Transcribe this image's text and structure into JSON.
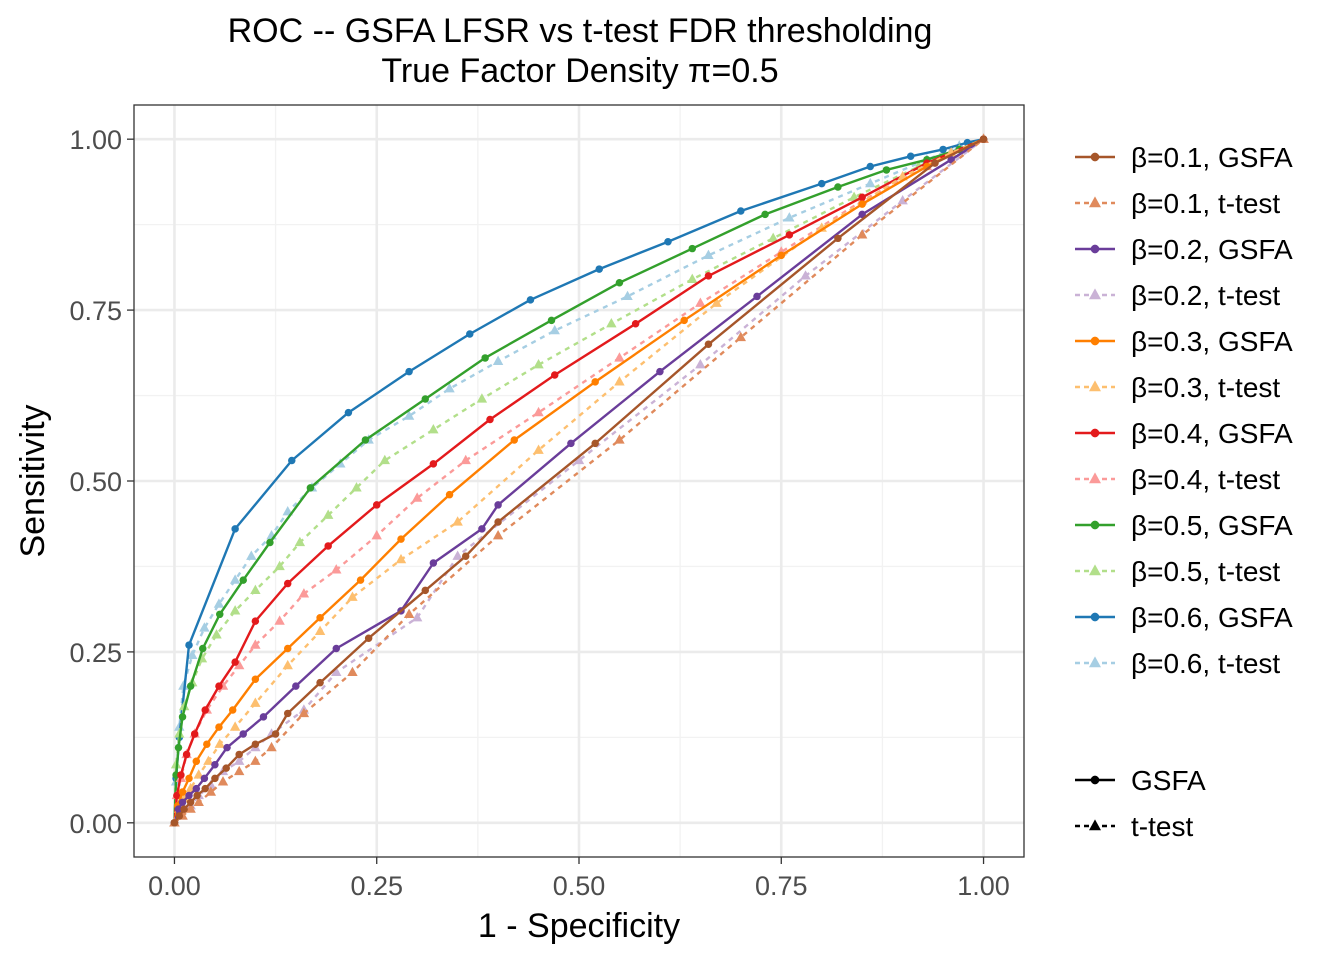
{
  "chart_data": {
    "type": "line",
    "title": "ROC -- GSFA LFSR vs t-test FDR thresholding",
    "subtitle": "True Factor Density π=0.5",
    "xlabel": "1 - Specificity",
    "ylabel": "Sensitivity",
    "xlim": [
      -0.05,
      1.05
    ],
    "ylim": [
      -0.05,
      1.05
    ],
    "xticks": [
      0,
      0.25,
      0.5,
      0.75,
      1
    ],
    "yticks": [
      0,
      0.25,
      0.5,
      0.75,
      1
    ],
    "xtick_labels": [
      "0.00",
      "0.25",
      "0.50",
      "0.75",
      "1.00"
    ],
    "ytick_labels": [
      "0.00",
      "0.25",
      "0.50",
      "0.75",
      "1.00"
    ],
    "grid": true,
    "legend_position": "right",
    "series": [
      {
        "name": "β=0.1, GSFA",
        "color": "#a6562a",
        "marker": "circle",
        "dash": "solid",
        "x": [
          0,
          0.006,
          0.012,
          0.02,
          0.028,
          0.038,
          0.05,
          0.064,
          0.08,
          0.1,
          0.125,
          0.14,
          0.18,
          0.24,
          0.31,
          0.36,
          0.4,
          0.52,
          0.66,
          0.82,
          0.94,
          1.0
        ],
        "y": [
          0,
          0.01,
          0.02,
          0.03,
          0.04,
          0.05,
          0.065,
          0.08,
          0.1,
          0.115,
          0.13,
          0.16,
          0.205,
          0.27,
          0.34,
          0.39,
          0.44,
          0.555,
          0.7,
          0.855,
          0.965,
          1.0
        ]
      },
      {
        "name": "β=0.1, t-test",
        "color": "#e08a5c",
        "marker": "triangle",
        "dash": "dashed",
        "x": [
          0,
          0.01,
          0.02,
          0.03,
          0.045,
          0.06,
          0.08,
          0.1,
          0.12,
          0.16,
          0.22,
          0.29,
          0.4,
          0.55,
          0.7,
          0.85,
          1.0
        ],
        "y": [
          0,
          0.01,
          0.02,
          0.03,
          0.045,
          0.06,
          0.075,
          0.09,
          0.11,
          0.16,
          0.22,
          0.305,
          0.42,
          0.56,
          0.71,
          0.86,
          1.0
        ]
      },
      {
        "name": "β=0.2, GSFA",
        "color": "#6a3d9a",
        "marker": "circle",
        "dash": "solid",
        "x": [
          0,
          0.005,
          0.01,
          0.018,
          0.027,
          0.037,
          0.05,
          0.065,
          0.085,
          0.11,
          0.15,
          0.2,
          0.28,
          0.32,
          0.38,
          0.4,
          0.49,
          0.6,
          0.72,
          0.85,
          0.96,
          1.0
        ],
        "y": [
          0,
          0.02,
          0.03,
          0.04,
          0.05,
          0.065,
          0.085,
          0.11,
          0.13,
          0.155,
          0.2,
          0.255,
          0.31,
          0.38,
          0.43,
          0.465,
          0.555,
          0.66,
          0.77,
          0.89,
          0.97,
          1.0
        ]
      },
      {
        "name": "β=0.2, t-test",
        "color": "#cab2d6",
        "marker": "triangle",
        "dash": "dashed",
        "x": [
          0,
          0.01,
          0.02,
          0.03,
          0.045,
          0.06,
          0.08,
          0.1,
          0.12,
          0.16,
          0.2,
          0.3,
          0.35,
          0.5,
          0.65,
          0.78,
          0.9,
          1.0
        ],
        "y": [
          0,
          0.01,
          0.025,
          0.04,
          0.055,
          0.075,
          0.09,
          0.11,
          0.13,
          0.165,
          0.22,
          0.3,
          0.39,
          0.53,
          0.67,
          0.8,
          0.91,
          1.0
        ]
      },
      {
        "name": "β=0.3, GSFA",
        "color": "#ff7f00",
        "marker": "circle",
        "dash": "solid",
        "x": [
          0,
          0.004,
          0.01,
          0.018,
          0.027,
          0.04,
          0.055,
          0.072,
          0.1,
          0.14,
          0.18,
          0.23,
          0.28,
          0.34,
          0.42,
          0.52,
          0.63,
          0.75,
          0.85,
          0.93,
          1.0
        ],
        "y": [
          0,
          0.025,
          0.045,
          0.065,
          0.09,
          0.115,
          0.14,
          0.165,
          0.21,
          0.255,
          0.3,
          0.355,
          0.415,
          0.48,
          0.56,
          0.645,
          0.735,
          0.83,
          0.905,
          0.96,
          1.0
        ]
      },
      {
        "name": "β=0.3, t-test",
        "color": "#fdbf6f",
        "marker": "triangle",
        "dash": "dashed",
        "x": [
          0,
          0.006,
          0.012,
          0.02,
          0.03,
          0.042,
          0.056,
          0.075,
          0.1,
          0.14,
          0.18,
          0.22,
          0.28,
          0.35,
          0.45,
          0.55,
          0.67,
          0.8,
          0.9,
          0.96,
          1.0
        ],
        "y": [
          0,
          0.02,
          0.035,
          0.05,
          0.07,
          0.09,
          0.115,
          0.14,
          0.175,
          0.23,
          0.28,
          0.33,
          0.385,
          0.44,
          0.545,
          0.645,
          0.76,
          0.87,
          0.945,
          0.98,
          1.0
        ]
      },
      {
        "name": "β=0.4, GSFA",
        "color": "#e31a1c",
        "marker": "circle",
        "dash": "solid",
        "x": [
          0,
          0.003,
          0.008,
          0.015,
          0.025,
          0.038,
          0.055,
          0.075,
          0.1,
          0.14,
          0.19,
          0.25,
          0.32,
          0.39,
          0.47,
          0.57,
          0.66,
          0.76,
          0.85,
          0.93,
          1.0
        ],
        "y": [
          0,
          0.04,
          0.07,
          0.1,
          0.13,
          0.165,
          0.2,
          0.235,
          0.295,
          0.35,
          0.405,
          0.465,
          0.525,
          0.59,
          0.655,
          0.73,
          0.8,
          0.86,
          0.915,
          0.965,
          1.0
        ]
      },
      {
        "name": "β=0.4, t-test",
        "color": "#fb9a99",
        "marker": "triangle",
        "dash": "dashed",
        "x": [
          0,
          0.003,
          0.008,
          0.015,
          0.025,
          0.04,
          0.06,
          0.08,
          0.1,
          0.13,
          0.16,
          0.2,
          0.25,
          0.3,
          0.36,
          0.45,
          0.55,
          0.65,
          0.75,
          0.85,
          0.93,
          1.0
        ],
        "y": [
          0,
          0.04,
          0.065,
          0.1,
          0.13,
          0.165,
          0.2,
          0.23,
          0.26,
          0.295,
          0.335,
          0.37,
          0.42,
          0.475,
          0.53,
          0.6,
          0.68,
          0.76,
          0.835,
          0.91,
          0.96,
          1.0
        ]
      },
      {
        "name": "β=0.5, GSFA",
        "color": "#33a02c",
        "marker": "circle",
        "dash": "solid",
        "x": [
          0,
          0.002,
          0.005,
          0.01,
          0.02,
          0.035,
          0.056,
          0.085,
          0.118,
          0.168,
          0.236,
          0.31,
          0.384,
          0.466,
          0.55,
          0.64,
          0.73,
          0.82,
          0.88,
          0.93,
          0.97,
          1.0
        ],
        "y": [
          0,
          0.07,
          0.11,
          0.155,
          0.2,
          0.255,
          0.305,
          0.355,
          0.41,
          0.49,
          0.56,
          0.62,
          0.68,
          0.735,
          0.79,
          0.84,
          0.89,
          0.93,
          0.955,
          0.97,
          0.985,
          1.0
        ]
      },
      {
        "name": "β=0.5, t-test",
        "color": "#b2df8a",
        "marker": "triangle",
        "dash": "dashed",
        "x": [
          0,
          0.002,
          0.006,
          0.012,
          0.022,
          0.034,
          0.052,
          0.075,
          0.1,
          0.13,
          0.155,
          0.19,
          0.225,
          0.26,
          0.32,
          0.38,
          0.45,
          0.54,
          0.64,
          0.74,
          0.84,
          0.92,
          0.97,
          1.0
        ],
        "y": [
          0,
          0.085,
          0.13,
          0.17,
          0.205,
          0.24,
          0.275,
          0.31,
          0.34,
          0.375,
          0.41,
          0.45,
          0.49,
          0.53,
          0.575,
          0.62,
          0.67,
          0.73,
          0.795,
          0.855,
          0.915,
          0.96,
          0.985,
          1.0
        ]
      },
      {
        "name": "β=0.6, GSFA",
        "color": "#1f78b4",
        "marker": "circle",
        "dash": "solid",
        "x": [
          0,
          0.002,
          0.006,
          0.018,
          0.075,
          0.145,
          0.215,
          0.29,
          0.365,
          0.44,
          0.525,
          0.61,
          0.7,
          0.8,
          0.86,
          0.91,
          0.95,
          0.98,
          1.0
        ],
        "y": [
          0,
          0.065,
          0.125,
          0.26,
          0.43,
          0.53,
          0.6,
          0.66,
          0.715,
          0.765,
          0.81,
          0.85,
          0.895,
          0.935,
          0.96,
          0.975,
          0.985,
          0.995,
          1.0
        ]
      },
      {
        "name": "β=0.6, t-test",
        "color": "#a6cee3",
        "marker": "triangle",
        "dash": "dashed",
        "x": [
          0,
          0.002,
          0.006,
          0.011,
          0.022,
          0.037,
          0.055,
          0.075,
          0.095,
          0.12,
          0.14,
          0.17,
          0.205,
          0.24,
          0.29,
          0.34,
          0.4,
          0.47,
          0.56,
          0.66,
          0.76,
          0.86,
          0.93,
          0.97,
          1.0
        ],
        "y": [
          0,
          0.06,
          0.14,
          0.2,
          0.245,
          0.285,
          0.32,
          0.355,
          0.39,
          0.42,
          0.455,
          0.49,
          0.525,
          0.56,
          0.595,
          0.635,
          0.675,
          0.72,
          0.77,
          0.83,
          0.885,
          0.935,
          0.97,
          0.99,
          1.0
        ]
      }
    ],
    "method_legend": [
      {
        "label": "GSFA",
        "marker": "circle",
        "dash": "solid"
      },
      {
        "label": "t-test",
        "marker": "triangle",
        "dash": "dashed"
      }
    ]
  }
}
